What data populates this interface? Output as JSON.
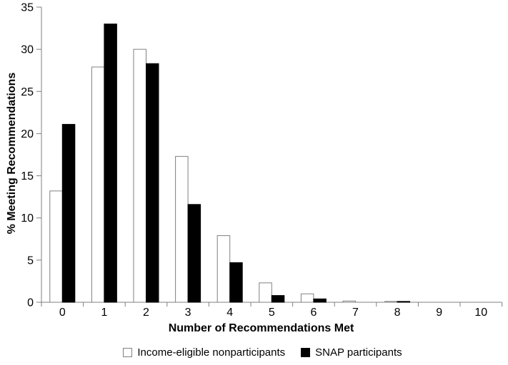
{
  "chart_data": {
    "type": "bar",
    "title": "",
    "xlabel": "Number of Recommendations Met",
    "ylabel": "% Meeting Recommendations",
    "categories": [
      "0",
      "1",
      "2",
      "3",
      "4",
      "5",
      "6",
      "7",
      "8",
      "9",
      "10"
    ],
    "series": [
      {
        "name": "Income-eligible nonparticipants",
        "key": "income-eligible-nonparticipants",
        "fill": "#ffffff",
        "border": "#808080",
        "values": [
          13.2,
          27.9,
          30.0,
          17.3,
          7.9,
          2.3,
          1.0,
          0.15,
          0.1,
          0,
          0
        ]
      },
      {
        "name": "SNAP participants",
        "key": "snap-participants",
        "fill": "#000000",
        "border": "#000000",
        "values": [
          21.1,
          33.0,
          28.3,
          11.6,
          4.7,
          0.8,
          0.4,
          0,
          0.1,
          0,
          0
        ]
      }
    ],
    "ylim": [
      0,
      35
    ],
    "y_ticks": [
      0,
      5,
      10,
      15,
      20,
      25,
      30,
      35
    ],
    "grid": false,
    "legend_position": "bottom",
    "axis_color": "#7f7f7f",
    "text_color": "#000000"
  }
}
